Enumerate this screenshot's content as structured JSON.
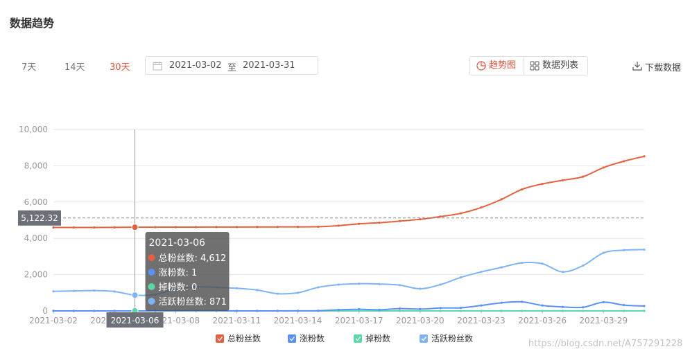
{
  "header": {
    "title": "数据趋势"
  },
  "range_buttons": [
    {
      "label": "7天",
      "active": false
    },
    {
      "label": "14天",
      "active": false
    },
    {
      "label": "30天",
      "active": true
    }
  ],
  "date_picker": {
    "start": "2021-03-02",
    "separator": "至",
    "end": "2021-03-31",
    "icon": "calendar-icon"
  },
  "view_toggle": {
    "trend_label": "趋势图",
    "trend_icon": "pie-chart-icon",
    "list_label": "数据列表",
    "list_icon": "grid-icon",
    "active": "trend"
  },
  "download": {
    "label": "下载数据",
    "icon": "download-icon"
  },
  "colors": {
    "accent": "#e0533c",
    "total": "#e4603f",
    "gain": "#5b8ff9",
    "loss": "#5ad8a6",
    "active": "#7eb4f5",
    "grid": "#e6e6e6",
    "axis_text": "#999999"
  },
  "watermark": "https://blog.csdn.net/A757291228",
  "chart_data": {
    "type": "line",
    "x": [
      "2021-03-02",
      "2021-03-03",
      "2021-03-04",
      "2021-03-05",
      "2021-03-06",
      "2021-03-07",
      "2021-03-08",
      "2021-03-09",
      "2021-03-10",
      "2021-03-11",
      "2021-03-12",
      "2021-03-13",
      "2021-03-14",
      "2021-03-15",
      "2021-03-16",
      "2021-03-17",
      "2021-03-18",
      "2021-03-19",
      "2021-03-20",
      "2021-03-21",
      "2021-03-22",
      "2021-03-23",
      "2021-03-24",
      "2021-03-25",
      "2021-03-26",
      "2021-03-27",
      "2021-03-28",
      "2021-03-29",
      "2021-03-30",
      "2021-03-31"
    ],
    "x_tick_labels": [
      "2021-03-02",
      "2021-03-05",
      "2021-03-08",
      "2021-03-11",
      "2021-03-14",
      "2021-03-17",
      "2021-03-20",
      "2021-03-23",
      "2021-03-26",
      "2021-03-29"
    ],
    "ylim": [
      0,
      10000
    ],
    "y_ticks": [
      0,
      2000,
      4000,
      6000,
      8000,
      10000
    ],
    "y_tick_labels": [
      "0",
      "2,000",
      "4,000",
      "6,000",
      "8,000",
      "10,000"
    ],
    "grid": true,
    "legend_position": "bottom-center",
    "series": [
      {
        "name": "总粉丝数",
        "color": "#e4603f",
        "values": [
          4600,
          4600,
          4600,
          4605,
          4612,
          4615,
          4618,
          4620,
          4622,
          4625,
          4628,
          4630,
          4633,
          4640,
          4700,
          4800,
          4860,
          4950,
          5050,
          5200,
          5380,
          5700,
          6150,
          6700,
          7000,
          7200,
          7400,
          7900,
          8250,
          8520
        ]
      },
      {
        "name": "涨粉数",
        "color": "#5b8ff9",
        "values": [
          0,
          0,
          0,
          0,
          1,
          0,
          5,
          8,
          10,
          0,
          0,
          0,
          5,
          10,
          60,
          90,
          60,
          130,
          100,
          160,
          170,
          300,
          450,
          500,
          300,
          220,
          200,
          480,
          320,
          270
        ]
      },
      {
        "name": "掉粉数",
        "color": "#5ad8a6",
        "values": [
          0,
          0,
          0,
          0,
          0,
          0,
          0,
          0,
          0,
          0,
          0,
          0,
          0,
          0,
          0,
          0,
          0,
          0,
          0,
          0,
          0,
          0,
          0,
          0,
          0,
          0,
          0,
          0,
          0,
          0
        ]
      },
      {
        "name": "活跃粉丝数",
        "color": "#7eb4f5",
        "values": [
          1080,
          1100,
          1120,
          1070,
          871,
          900,
          1200,
          1320,
          1300,
          1250,
          1150,
          950,
          1000,
          1300,
          1450,
          1500,
          1480,
          1420,
          1220,
          1450,
          1850,
          2150,
          2400,
          2650,
          2600,
          2150,
          2500,
          3200,
          3350,
          3380
        ]
      }
    ],
    "crosshair": {
      "x": "2021-03-06",
      "y_value_label": "5,122.32",
      "y_value": 5122.32
    },
    "tooltip": {
      "title": "2021-03-06",
      "rows": [
        {
          "label": "总粉丝数: 4,612",
          "color": "#e4603f"
        },
        {
          "label": "涨粉数: 1",
          "color": "#5b8ff9"
        },
        {
          "label": "掉粉数: 0",
          "color": "#5ad8a6"
        },
        {
          "label": "活跃粉丝数: 871",
          "color": "#7eb4f5"
        }
      ]
    }
  }
}
